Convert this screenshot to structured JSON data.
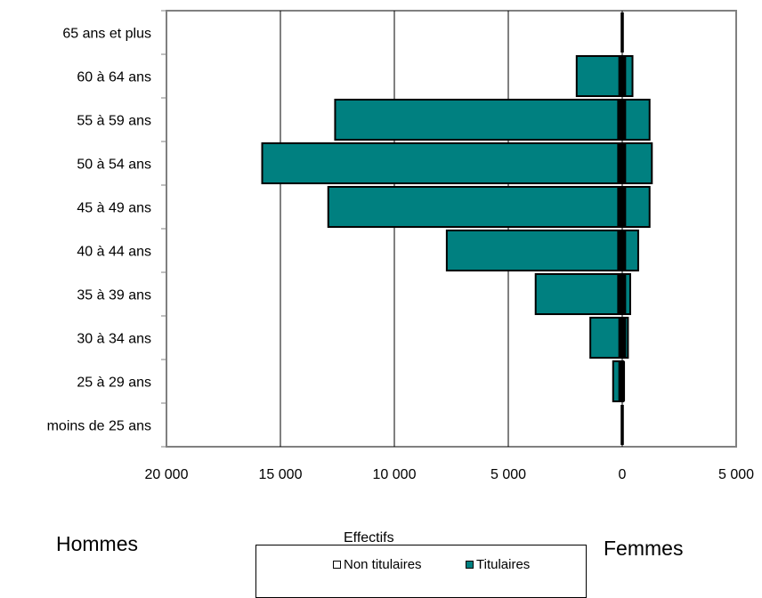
{
  "chart_data": {
    "type": "bar",
    "orientation": "horizontal",
    "categories": [
      "moins de 25 ans",
      "25 à 29 ans",
      "30 à 34 ans",
      "35 à 39 ans",
      "40 à 44 ans",
      "45 à 49 ans",
      "50 à 54 ans",
      "55 à 59 ans",
      "60 à 64 ans",
      "65 ans et plus"
    ],
    "series": [
      {
        "name": "Titulaires",
        "color": "#008080",
        "hommes": [
          0,
          400,
          1400,
          3800,
          7700,
          12900,
          15800,
          12600,
          2000,
          0
        ],
        "femmes": [
          0,
          50,
          250,
          350,
          700,
          1200,
          1300,
          1200,
          450,
          0
        ]
      },
      {
        "name": "Non titulaires",
        "color": "#000000",
        "hommes": [
          50,
          150,
          150,
          200,
          200,
          200,
          200,
          200,
          150,
          50
        ],
        "femmes": [
          50,
          100,
          150,
          150,
          150,
          150,
          150,
          150,
          150,
          50
        ]
      }
    ],
    "xlim": [
      -20000,
      5000
    ],
    "xticks": [
      "20 000",
      "15 000",
      "10 000",
      "5 000",
      "0",
      "5 000"
    ],
    "xlabel": "Effectifs",
    "left_label": "Hommes",
    "right_label": "Femmes",
    "legend": [
      "Non titulaires",
      "Titulaires"
    ],
    "grid": true
  }
}
